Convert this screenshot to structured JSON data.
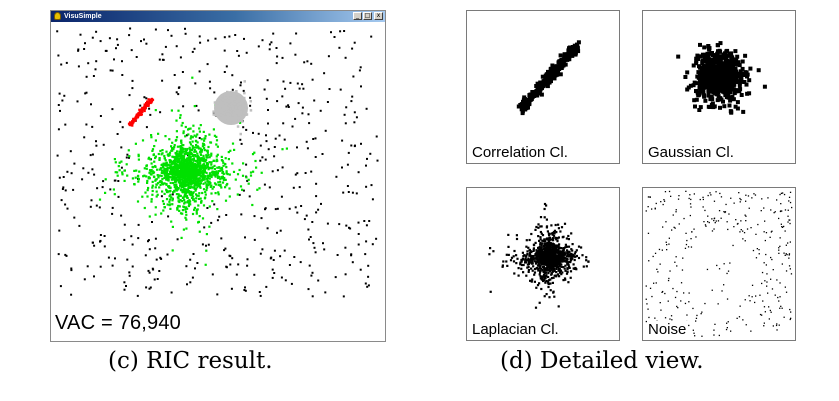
{
  "window": {
    "title": "VisuSimple",
    "minimize_glyph": "_",
    "maximize_glyph": "□",
    "close_glyph": "x",
    "app_icon": "java-cup-icon",
    "vac_text": "VAC = 76,940"
  },
  "clusters": {
    "correlation_color": "#ff0000",
    "gaussian_color": "#bfbfbf",
    "laplacian_color": "#00e000",
    "noise_color": "#000000"
  },
  "panels": {
    "correlation_label": "Correlation Cl.",
    "gaussian_label": "Gaussian Cl.",
    "laplacian_label": "Laplacian Cl.",
    "noise_label": "Noise"
  },
  "captions": {
    "c": "(c) RIC result.",
    "d": "(d) Detailed view."
  }
}
